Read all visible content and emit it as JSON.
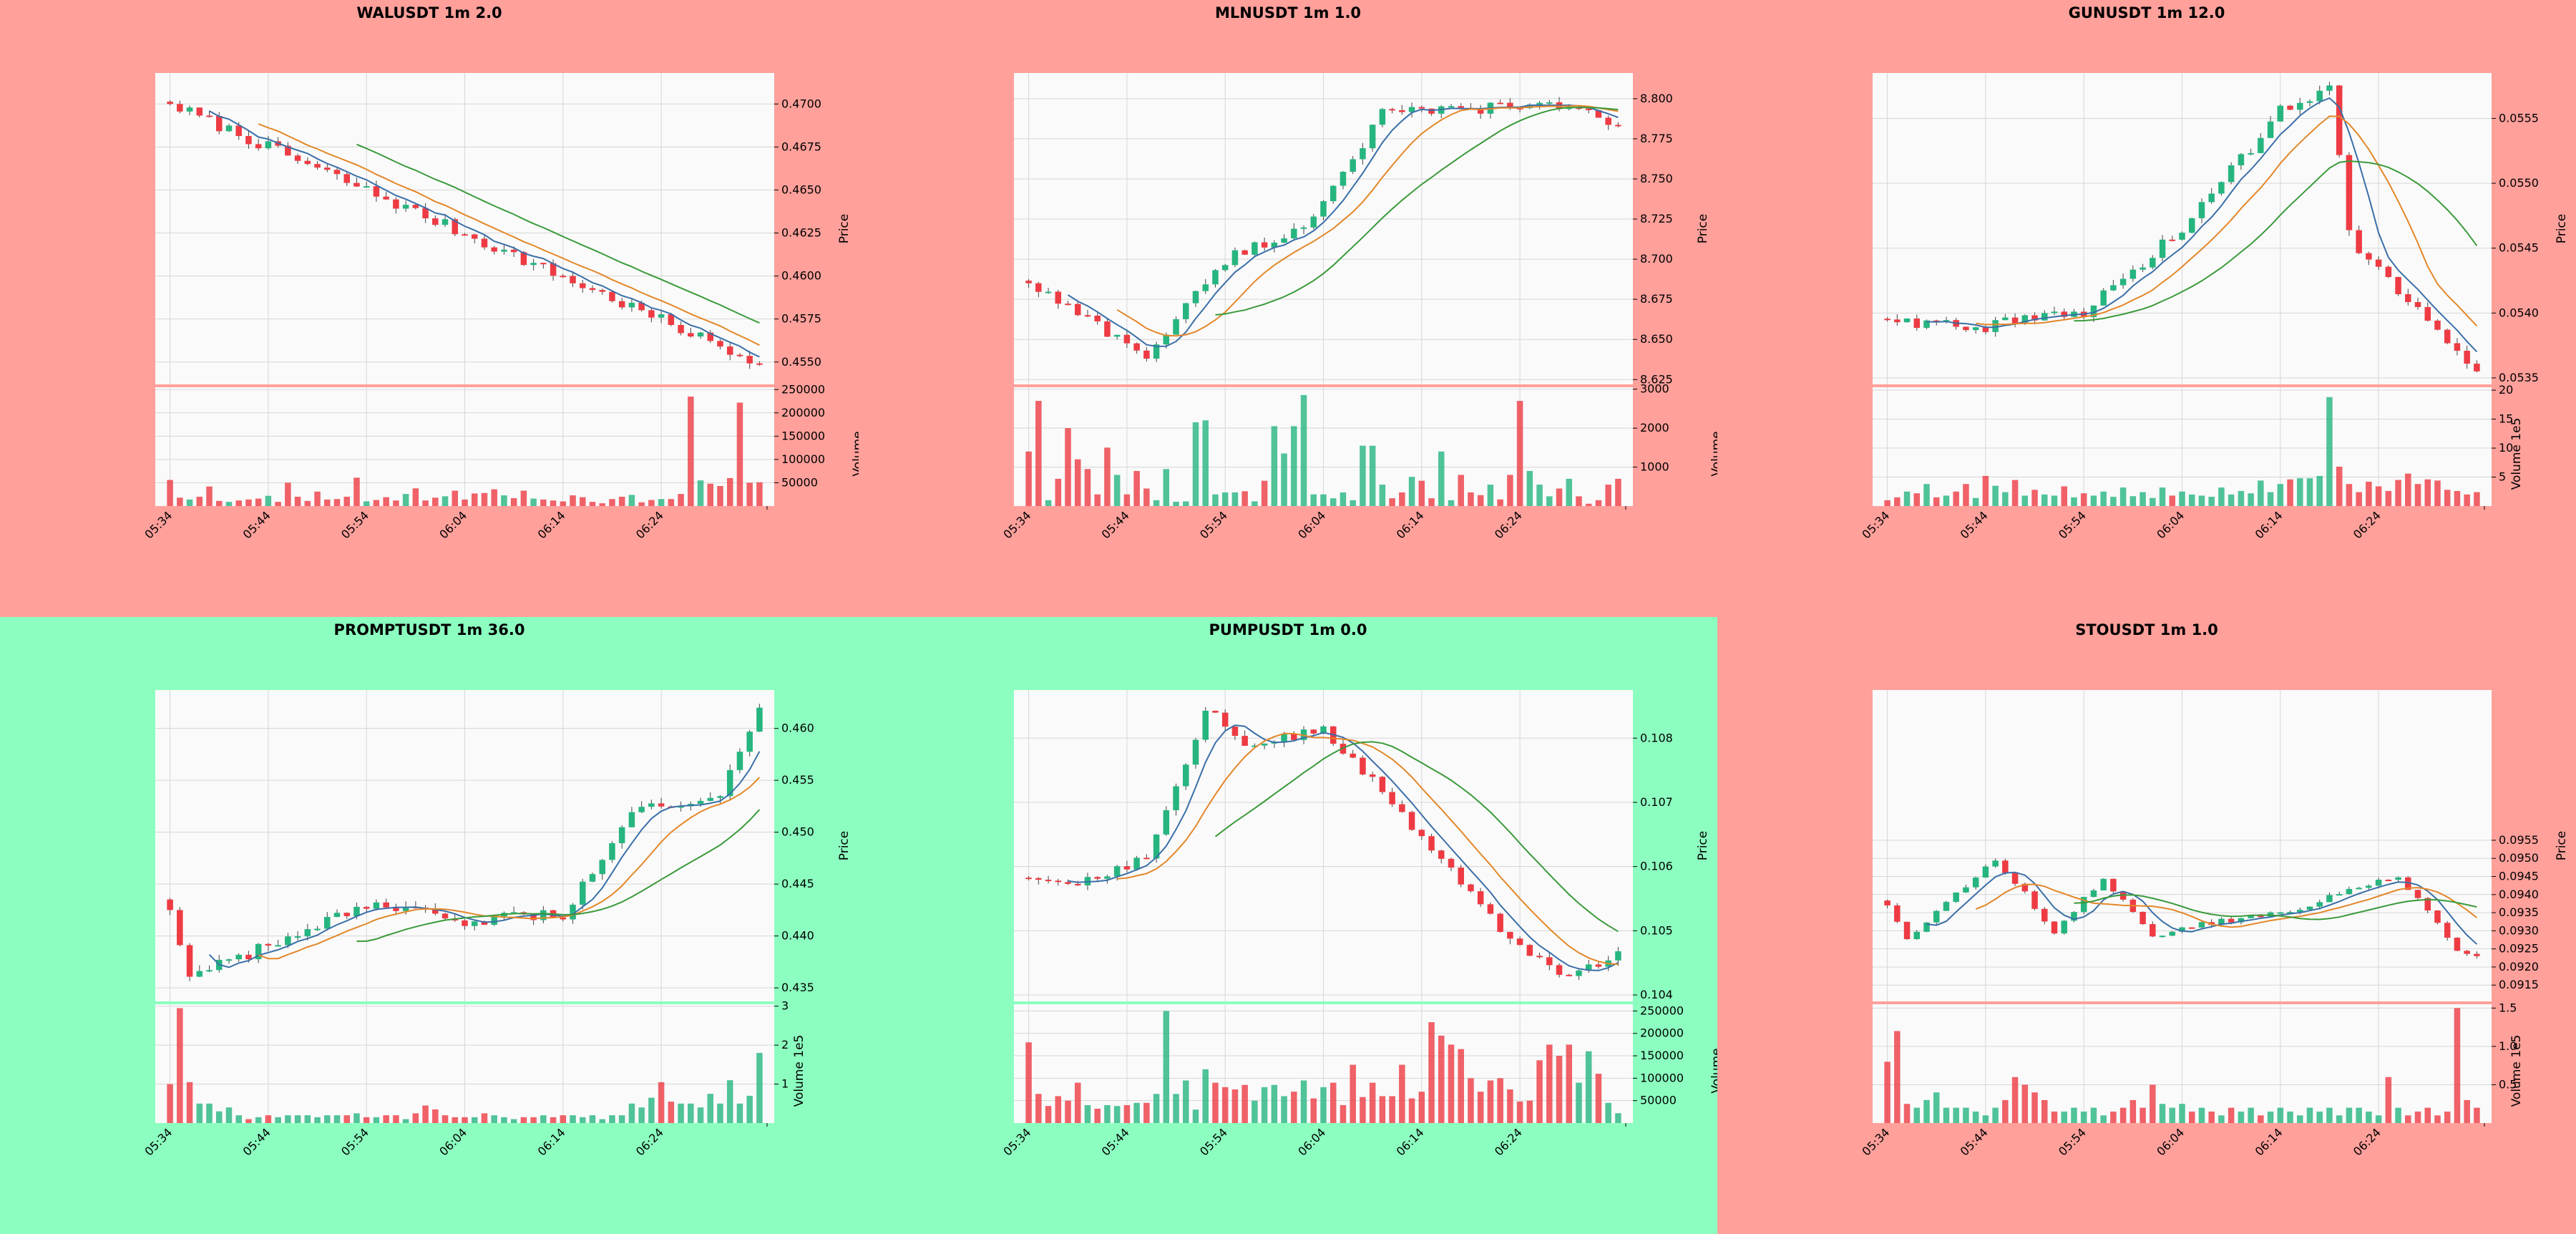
{
  "colors": {
    "up": "#26b57f",
    "down": "#ee3b43",
    "ma_fast": "#3a6fa8",
    "ma_mid": "#e3872a",
    "ma_slow": "#3b9a3b",
    "bg_red": "#ffa09b",
    "bg_green": "#8cffc0",
    "plot_bg": "#fafafa"
  },
  "chart_data": [
    {
      "type": "candlestick",
      "title": "WALUSDT 1m 2.0",
      "status": "down",
      "ylabel": "Price",
      "vol_label": "Volume",
      "xticks": [
        "05:34",
        "05:44",
        "05:54",
        "06:04",
        "06:14",
        "06:24"
      ],
      "ylim": [
        0.4537,
        0.4718
      ],
      "yticks": [
        "0.4550",
        "0.4575",
        "0.4600",
        "0.4625",
        "0.4650",
        "0.4675",
        "0.4700"
      ],
      "vol_max": 255000,
      "vol_ticks": [
        "50000",
        "100000",
        "150000",
        "200000",
        "250000"
      ],
      "candles": {
        "start": 0.47,
        "end": 0.4549,
        "low": 0.4545,
        "high": 0.4709,
        "count": 61,
        "peaks": []
      },
      "volumes": [
        56000,
        18000,
        14000,
        20000,
        42000,
        11000,
        9000,
        12000,
        14000,
        16000,
        22000,
        9000,
        50000,
        20000,
        11000,
        31000,
        14000,
        15000,
        20000,
        61000,
        10000,
        13000,
        19000,
        12000,
        26000,
        38000,
        12000,
        18000,
        21000,
        33000,
        14000,
        27000,
        28000,
        36000,
        23000,
        17000,
        33000,
        16000,
        14000,
        12000,
        10000,
        23000,
        19000,
        9000,
        6000,
        15000,
        20000,
        24000,
        8000,
        13000,
        15000,
        15000,
        26000,
        235000,
        55000,
        48000,
        43000,
        60000,
        222000,
        50000,
        51000
      ]
    },
    {
      "type": "candlestick",
      "title": "MLNUSDT 1m 1.0",
      "status": "down",
      "ylabel": "Price",
      "vol_label": "Volume",
      "xticks": [
        "05:34",
        "05:44",
        "05:54",
        "06:04",
        "06:14",
        "06:24"
      ],
      "ylim": [
        8.622,
        8.816
      ],
      "yticks": [
        "8.625",
        "8.650",
        "8.675",
        "8.700",
        "8.725",
        "8.750",
        "8.775",
        "8.800"
      ],
      "vol_max": 3050,
      "vol_ticks": [
        "1000",
        "2000",
        "3000"
      ],
      "candles": {
        "start": 8.685,
        "end": 8.783,
        "low": 8.636,
        "high": 8.81,
        "count": 61,
        "peaks": [
          [
            12,
            8.64
          ],
          [
            20,
            8.7
          ],
          [
            28,
            8.72
          ],
          [
            36,
            8.79
          ],
          [
            48,
            8.795
          ],
          [
            56,
            8.795
          ]
        ]
      },
      "volumes": [
        1400,
        2700,
        150,
        700,
        2000,
        1200,
        950,
        300,
        1500,
        800,
        300,
        900,
        450,
        150,
        950,
        110,
        120,
        2150,
        2200,
        300,
        350,
        350,
        380,
        120,
        650,
        2050,
        1350,
        2050,
        2850,
        300,
        300,
        200,
        350,
        150,
        1550,
        1550,
        550,
        200,
        350,
        750,
        650,
        200,
        1400,
        150,
        800,
        350,
        280,
        550,
        170,
        800,
        2700,
        900,
        550,
        250,
        450,
        700,
        250,
        60,
        150,
        550,
        700
      ]
    },
    {
      "type": "candlestick",
      "title": "GUNUSDT 1m 12.0",
      "status": "down",
      "ylabel": "Price",
      "vol_label": "Volume",
      "vol_exp": "1e5",
      "xticks": [
        "05:34",
        "05:44",
        "05:54",
        "06:04",
        "06:14",
        "06:24"
      ],
      "ylim": [
        0.05345,
        0.05585
      ],
      "yticks": [
        "0.0535",
        "0.0540",
        "0.0545",
        "0.0550",
        "0.0555"
      ],
      "vol_max": 20.5,
      "vol_ticks": [
        "5",
        "10",
        "15",
        "20"
      ],
      "candles": {
        "start": 0.05395,
        "end": 0.05355,
        "low": 0.05348,
        "high": 0.05576,
        "count": 61,
        "peaks": [
          [
            10,
            0.0539
          ],
          [
            20,
            0.054
          ],
          [
            30,
            0.05465
          ],
          [
            40,
            0.05555
          ],
          [
            45,
            0.05575
          ],
          [
            47,
            0.0546
          ],
          [
            52,
            0.05415
          ],
          [
            56,
            0.0539
          ]
        ]
      },
      "volumes": [
        1.0,
        1.5,
        2.5,
        2.2,
        3.8,
        1.5,
        1.8,
        2.5,
        3.8,
        1.4,
        5.2,
        3.5,
        2.4,
        4.5,
        1.8,
        2.8,
        2.0,
        1.8,
        3.4,
        1.5,
        2.2,
        1.8,
        2.5,
        1.6,
        3.2,
        1.7,
        2.4,
        1.4,
        3.2,
        1.8,
        2.5,
        2.0,
        1.8,
        1.6,
        3.2,
        2.0,
        2.6,
        2.2,
        4.4,
        2.4,
        3.8,
        4.6,
        4.8,
        4.8,
        5.2,
        18.8,
        6.8,
        3.8,
        2.4,
        4.2,
        3.4,
        2.6,
        4.5,
        5.6,
        3.8,
        4.6,
        4.4,
        2.8,
        2.6,
        2.0,
        2.4
      ]
    },
    {
      "type": "candlestick",
      "title": "PROMPTUSDT 1m 36.0",
      "status": "up",
      "ylabel": "Price",
      "vol_label": "Volume",
      "vol_exp": "1e5",
      "xticks": [
        "05:34",
        "05:44",
        "05:54",
        "06:04",
        "06:14",
        "06:24"
      ],
      "ylim": [
        0.4337,
        0.4637
      ],
      "yticks": [
        "0.435",
        "0.440",
        "0.445",
        "0.450",
        "0.455",
        "0.460"
      ],
      "vol_max": 3.05,
      "vol_ticks": [
        "1",
        "2",
        "3"
      ],
      "candles": {
        "start": 0.4425,
        "end": 0.462,
        "low": 0.435,
        "high": 0.4628,
        "count": 61,
        "peaks": [
          [
            2,
            0.436
          ],
          [
            10,
            0.439
          ],
          [
            20,
            0.4428
          ],
          [
            30,
            0.4415
          ],
          [
            40,
            0.442
          ],
          [
            48,
            0.4528
          ],
          [
            52,
            0.453
          ],
          [
            56,
            0.454
          ]
        ]
      },
      "volumes": [
        1.0,
        2.95,
        1.05,
        0.5,
        0.5,
        0.3,
        0.4,
        0.2,
        0.1,
        0.15,
        0.2,
        0.15,
        0.2,
        0.2,
        0.2,
        0.15,
        0.2,
        0.2,
        0.2,
        0.25,
        0.15,
        0.15,
        0.2,
        0.2,
        0.1,
        0.25,
        0.45,
        0.35,
        0.2,
        0.15,
        0.15,
        0.15,
        0.25,
        0.2,
        0.15,
        0.1,
        0.15,
        0.15,
        0.2,
        0.15,
        0.2,
        0.2,
        0.15,
        0.2,
        0.1,
        0.2,
        0.2,
        0.5,
        0.4,
        0.65,
        1.05,
        0.55,
        0.5,
        0.5,
        0.4,
        0.75,
        0.5,
        1.1,
        0.5,
        0.7,
        1.8
      ]
    },
    {
      "type": "candlestick",
      "title": "PUMPUSDT 1m 0.0",
      "status": "up",
      "ylabel": "Price",
      "vol_label": "Volume",
      "xticks": [
        "05:34",
        "05:44",
        "05:54",
        "06:04",
        "06:14",
        "06:24"
      ],
      "ylim": [
        0.1039,
        0.10875
      ],
      "yticks": [
        "0.104",
        "0.105",
        "0.106",
        "0.107",
        "0.108"
      ],
      "vol_max": 265000,
      "vol_ticks": [
        "50000",
        "100000",
        "150000",
        "200000",
        "250000"
      ],
      "candles": {
        "start": 0.10582,
        "end": 0.10468,
        "low": 0.10405,
        "high": 0.1085,
        "count": 61,
        "peaks": [
          [
            5,
            0.10575
          ],
          [
            12,
            0.10615
          ],
          [
            18,
            0.10845
          ],
          [
            22,
            0.1079
          ],
          [
            30,
            0.1081
          ],
          [
            40,
            0.1065
          ],
          [
            48,
            0.105
          ],
          [
            55,
            0.1042
          ]
        ]
      },
      "volumes": [
        180000,
        65000,
        38000,
        60000,
        50000,
        90000,
        40000,
        32000,
        40000,
        38000,
        40000,
        45000,
        45000,
        65000,
        250000,
        65000,
        95000,
        30000,
        120000,
        90000,
        80000,
        75000,
        85000,
        50000,
        80000,
        85000,
        60000,
        70000,
        95000,
        55000,
        80000,
        90000,
        40000,
        130000,
        58000,
        90000,
        60000,
        60000,
        130000,
        55000,
        70000,
        225000,
        195000,
        175000,
        165000,
        100000,
        70000,
        95000,
        100000,
        75000,
        48000,
        50000,
        140000,
        175000,
        150000,
        175000,
        90000,
        160000,
        110000,
        45000,
        22000
      ]
    },
    {
      "type": "candlestick",
      "title": "STOUSDT 1m 1.0",
      "status": "down",
      "ylabel": "Price",
      "vol_label": "Volume",
      "vol_exp": "1e5",
      "xticks": [
        "05:34",
        "05:44",
        "05:54",
        "06:04",
        "06:14",
        "06:24"
      ],
      "ylim": [
        0.09105,
        0.09965
      ],
      "yticks": [
        "0.0915",
        "0.0920",
        "0.0925",
        "0.0930",
        "0.0935",
        "0.0940",
        "0.0945",
        "0.0950",
        "0.0955"
      ],
      "vol_max": 1.55,
      "vol_ticks": [
        "0.5",
        "1.0",
        "1.5"
      ],
      "candles": {
        "start": 0.0937,
        "end": 0.0923,
        "low": 0.0915,
        "high": 0.0956,
        "count": 61,
        "peaks": [
          [
            2,
            0.0928
          ],
          [
            11,
            0.095
          ],
          [
            17,
            0.093
          ],
          [
            22,
            0.0945
          ],
          [
            27,
            0.0928
          ],
          [
            32,
            0.0932
          ],
          [
            40,
            0.0935
          ],
          [
            52,
            0.0945
          ],
          [
            58,
            0.0925
          ]
        ]
      },
      "volumes": [
        0.8,
        1.2,
        0.25,
        0.2,
        0.3,
        0.4,
        0.2,
        0.2,
        0.2,
        0.15,
        0.1,
        0.2,
        0.3,
        0.6,
        0.5,
        0.4,
        0.3,
        0.15,
        0.15,
        0.2,
        0.15,
        0.2,
        0.1,
        0.15,
        0.2,
        0.3,
        0.2,
        0.5,
        0.25,
        0.2,
        0.25,
        0.15,
        0.2,
        0.15,
        0.1,
        0.2,
        0.15,
        0.2,
        0.1,
        0.15,
        0.2,
        0.15,
        0.1,
        0.2,
        0.15,
        0.2,
        0.1,
        0.2,
        0.2,
        0.15,
        0.1,
        0.6,
        0.2,
        0.1,
        0.15,
        0.2,
        0.1,
        0.15,
        1.5,
        0.3,
        0.2
      ]
    }
  ]
}
